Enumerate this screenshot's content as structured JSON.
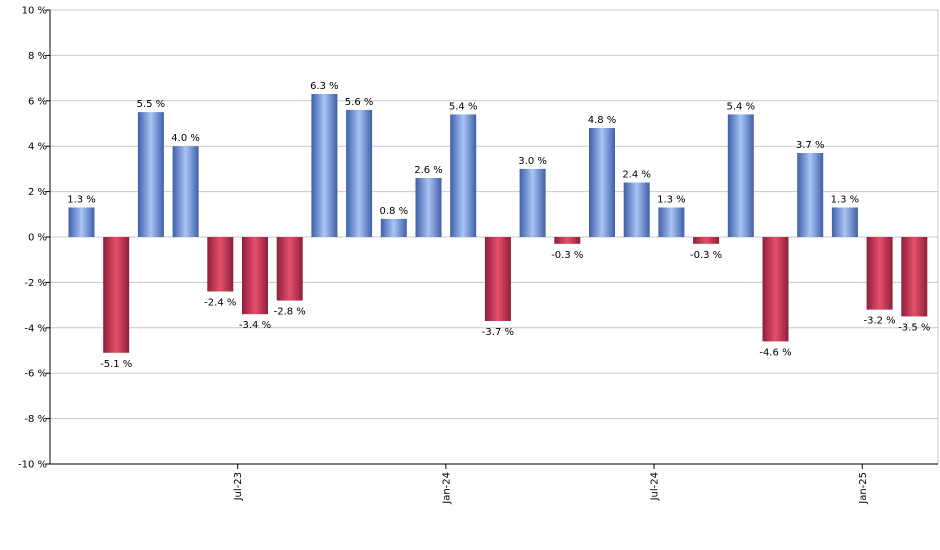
{
  "chart_data": {
    "type": "bar",
    "title": "",
    "xlabel": "",
    "ylabel": "",
    "ylim": [
      -10,
      10
    ],
    "y_ticks": [
      -10,
      -8,
      -6,
      -4,
      -2,
      0,
      2,
      4,
      6,
      8,
      10
    ],
    "y_tick_suffix": " %",
    "value_label_suffix": " %",
    "grid": true,
    "values": [
      1.3,
      -5.1,
      5.5,
      4.0,
      -2.4,
      -3.4,
      -2.8,
      6.3,
      5.6,
      0.8,
      2.6,
      5.4,
      -3.7,
      3.0,
      -0.3,
      4.8,
      2.4,
      1.3,
      -0.3,
      5.4,
      -4.6,
      3.7,
      1.3,
      -3.2,
      -3.5
    ],
    "value_labels": [
      "1.3 %",
      "-5.1 %",
      "5.5 %",
      "4.0 %",
      "-2.4 %",
      "-3.4 %",
      "-2.8 %",
      "6.3 %",
      "5.6 %",
      "0.8 %",
      "2.6 %",
      "5.4 %",
      "-3.7 %",
      "3.0 %",
      "-0.3 %",
      "4.8 %",
      "2.4 %",
      "1.3 %",
      "-0.3 %",
      "5.4 %",
      "-4.6 %",
      "3.7 %",
      "1.3 %",
      "-3.2 %",
      "-3.5 %"
    ],
    "x_ticks": [
      {
        "label": "Jul-23",
        "after_bar": 4
      },
      {
        "label": "Jan-24",
        "after_bar": 10
      },
      {
        "label": "Jul-24",
        "after_bar": 16
      },
      {
        "label": "Jan-25",
        "after_bar": 22
      }
    ],
    "colors": {
      "positive_dark": "#3f5fa8",
      "positive_light": "#a9c4f5",
      "negative_dark": "#8e1f3a",
      "negative_light": "#e64f6c"
    }
  }
}
